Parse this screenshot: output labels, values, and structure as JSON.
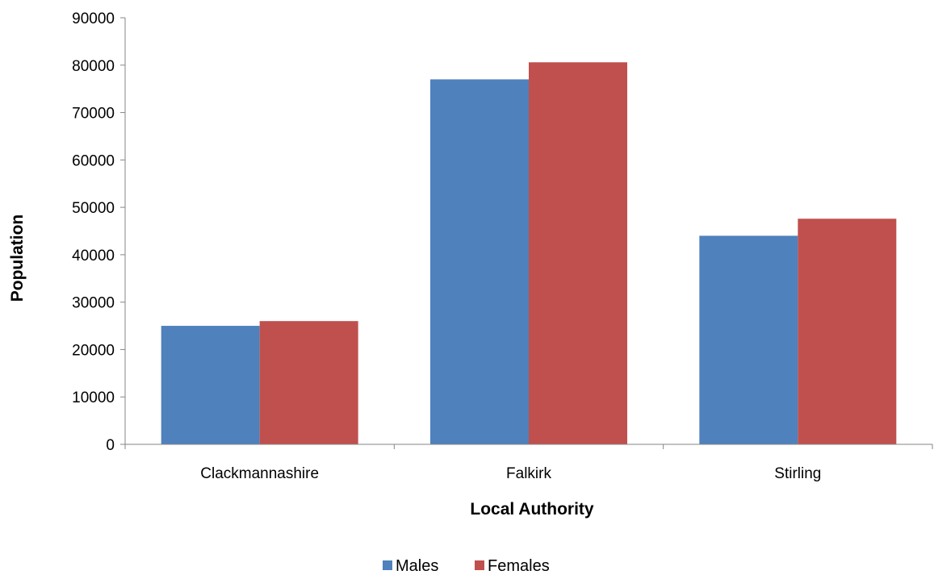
{
  "chart_data": {
    "type": "bar",
    "title": "",
    "xlabel": "Local Authority",
    "ylabel": "Population",
    "categories": [
      "Clackmannashire",
      "Falkirk",
      "Stirling"
    ],
    "series": [
      {
        "name": "Males",
        "values": [
          25000,
          77000,
          44000
        ],
        "color": "#4F81BD"
      },
      {
        "name": "Females",
        "values": [
          26000,
          80600,
          47600
        ],
        "color": "#C0504D"
      }
    ],
    "ylim": [
      0,
      90000
    ],
    "yticks": [
      "0",
      "10000",
      "20000",
      "30000",
      "40000",
      "50000",
      "60000",
      "70000",
      "80000",
      "90000"
    ],
    "grid": false,
    "legend_position": "bottom"
  }
}
